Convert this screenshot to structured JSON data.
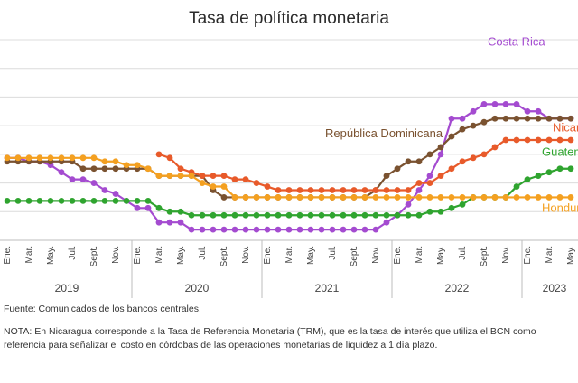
{
  "chart_data": {
    "type": "line",
    "title": "Tasa de política monetaria",
    "xlabel": "",
    "ylabel": "",
    "ylim": [
      0,
      14
    ],
    "grid": true,
    "months": [
      "Ene.",
      "Mar.",
      "May.",
      "Jul.",
      "Sept.",
      "Nov."
    ],
    "years": [
      "2019",
      "2020",
      "2021",
      "2022",
      "2023"
    ],
    "x_start": "2019-01",
    "x_end": "2023-05",
    "tick_months": [
      "2019-01",
      "2019-03",
      "2019-05",
      "2019-07",
      "2019-09",
      "2019-11",
      "2020-01",
      "2020-03",
      "2020-05",
      "2020-07",
      "2020-09",
      "2020-11",
      "2021-01",
      "2021-03",
      "2021-05",
      "2021-07",
      "2021-09",
      "2021-11",
      "2022-01",
      "2022-03",
      "2022-05",
      "2022-07",
      "2022-09",
      "2022-11",
      "2023-01",
      "2023-03",
      "2023-05"
    ],
    "series": [
      {
        "name": "Costa Rica",
        "color": "#a44bd0",
        "label_month": "2022-09",
        "label_y": 13.6,
        "points": [
          [
            "2019-01",
            5.75
          ],
          [
            "2019-02",
            5.75
          ],
          [
            "2019-03",
            5.5
          ],
          [
            "2019-04",
            5.5
          ],
          [
            "2019-05",
            5.25
          ],
          [
            "2019-06",
            4.75
          ],
          [
            "2019-07",
            4.25
          ],
          [
            "2019-08",
            4.25
          ],
          [
            "2019-09",
            4.0
          ],
          [
            "2019-10",
            3.5
          ],
          [
            "2019-11",
            3.25
          ],
          [
            "2019-12",
            2.75
          ],
          [
            "2020-01",
            2.25
          ],
          [
            "2020-02",
            2.25
          ],
          [
            "2020-03",
            1.25
          ],
          [
            "2020-04",
            1.25
          ],
          [
            "2020-05",
            1.25
          ],
          [
            "2020-06",
            0.75
          ],
          [
            "2020-07",
            0.75
          ],
          [
            "2020-08",
            0.75
          ],
          [
            "2020-09",
            0.75
          ],
          [
            "2020-10",
            0.75
          ],
          [
            "2020-11",
            0.75
          ],
          [
            "2020-12",
            0.75
          ],
          [
            "2021-01",
            0.75
          ],
          [
            "2021-02",
            0.75
          ],
          [
            "2021-03",
            0.75
          ],
          [
            "2021-04",
            0.75
          ],
          [
            "2021-05",
            0.75
          ],
          [
            "2021-06",
            0.75
          ],
          [
            "2021-07",
            0.75
          ],
          [
            "2021-08",
            0.75
          ],
          [
            "2021-09",
            0.75
          ],
          [
            "2021-10",
            0.75
          ],
          [
            "2021-11",
            0.75
          ],
          [
            "2021-12",
            1.25
          ],
          [
            "2022-01",
            1.75
          ],
          [
            "2022-02",
            2.5
          ],
          [
            "2022-03",
            3.5
          ],
          [
            "2022-04",
            4.5
          ],
          [
            "2022-05",
            6.0
          ],
          [
            "2022-06",
            8.5
          ],
          [
            "2022-07",
            8.5
          ],
          [
            "2022-08",
            9.0
          ],
          [
            "2022-09",
            9.5
          ],
          [
            "2022-10",
            9.5
          ],
          [
            "2022-11",
            9.5
          ],
          [
            "2022-12",
            9.5
          ],
          [
            "2023-01",
            9.0
          ],
          [
            "2023-02",
            9.0
          ],
          [
            "2023-03",
            8.5
          ],
          [
            "2023-04",
            8.5
          ],
          [
            "2023-05",
            8.5
          ]
        ]
      },
      {
        "name": "República Dominicana",
        "color": "#7a5230",
        "label_month": "2021-06",
        "label_y": 7.2,
        "points": [
          [
            "2019-01",
            5.5
          ],
          [
            "2019-02",
            5.5
          ],
          [
            "2019-03",
            5.5
          ],
          [
            "2019-04",
            5.5
          ],
          [
            "2019-05",
            5.5
          ],
          [
            "2019-06",
            5.5
          ],
          [
            "2019-07",
            5.5
          ],
          [
            "2019-08",
            5.0
          ],
          [
            "2019-09",
            5.0
          ],
          [
            "2019-10",
            5.0
          ],
          [
            "2019-11",
            5.0
          ],
          [
            "2019-12",
            5.0
          ],
          [
            "2020-01",
            5.0
          ],
          [
            "2020-02",
            5.0
          ],
          [
            "2020-03",
            4.5
          ],
          [
            "2020-04",
            4.5
          ],
          [
            "2020-05",
            4.5
          ],
          [
            "2020-06",
            4.5
          ],
          [
            "2020-07",
            4.5
          ],
          [
            "2020-08",
            3.5
          ],
          [
            "2020-09",
            3.0
          ],
          [
            "2020-10",
            3.0
          ],
          [
            "2020-11",
            3.0
          ],
          [
            "2020-12",
            3.0
          ],
          [
            "2021-01",
            3.0
          ],
          [
            "2021-02",
            3.0
          ],
          [
            "2021-03",
            3.0
          ],
          [
            "2021-04",
            3.0
          ],
          [
            "2021-05",
            3.0
          ],
          [
            "2021-06",
            3.0
          ],
          [
            "2021-07",
            3.0
          ],
          [
            "2021-08",
            3.0
          ],
          [
            "2021-09",
            3.0
          ],
          [
            "2021-10",
            3.0
          ],
          [
            "2021-11",
            3.5
          ],
          [
            "2021-12",
            4.5
          ],
          [
            "2022-01",
            5.0
          ],
          [
            "2022-02",
            5.5
          ],
          [
            "2022-03",
            5.5
          ],
          [
            "2022-04",
            6.0
          ],
          [
            "2022-05",
            6.5
          ],
          [
            "2022-06",
            7.25
          ],
          [
            "2022-07",
            7.75
          ],
          [
            "2022-08",
            8.0
          ],
          [
            "2022-09",
            8.25
          ],
          [
            "2022-10",
            8.5
          ],
          [
            "2022-11",
            8.5
          ],
          [
            "2022-12",
            8.5
          ],
          [
            "2023-01",
            8.5
          ],
          [
            "2023-02",
            8.5
          ],
          [
            "2023-03",
            8.5
          ],
          [
            "2023-04",
            8.5
          ],
          [
            "2023-05",
            8.5
          ]
        ]
      },
      {
        "name": "Nicaragua",
        "color": "#e85a2a",
        "label_month": "2023-03",
        "label_y": 7.6,
        "points": [
          [
            "2020-03",
            6.0
          ],
          [
            "2020-04",
            5.75
          ],
          [
            "2020-05",
            5.0
          ],
          [
            "2020-06",
            4.75
          ],
          [
            "2020-07",
            4.5
          ],
          [
            "2020-08",
            4.5
          ],
          [
            "2020-09",
            4.5
          ],
          [
            "2020-10",
            4.25
          ],
          [
            "2020-11",
            4.25
          ],
          [
            "2020-12",
            4.0
          ],
          [
            "2021-01",
            3.75
          ],
          [
            "2021-02",
            3.5
          ],
          [
            "2021-03",
            3.5
          ],
          [
            "2021-04",
            3.5
          ],
          [
            "2021-05",
            3.5
          ],
          [
            "2021-06",
            3.5
          ],
          [
            "2021-07",
            3.5
          ],
          [
            "2021-08",
            3.5
          ],
          [
            "2021-09",
            3.5
          ],
          [
            "2021-10",
            3.5
          ],
          [
            "2021-11",
            3.5
          ],
          [
            "2021-12",
            3.5
          ],
          [
            "2022-01",
            3.5
          ],
          [
            "2022-02",
            3.5
          ],
          [
            "2022-03",
            4.0
          ],
          [
            "2022-04",
            4.0
          ],
          [
            "2022-05",
            4.5
          ],
          [
            "2022-06",
            5.0
          ],
          [
            "2022-07",
            5.5
          ],
          [
            "2022-08",
            5.75
          ],
          [
            "2022-09",
            6.0
          ],
          [
            "2022-10",
            6.5
          ],
          [
            "2022-11",
            7.0
          ],
          [
            "2022-12",
            7.0
          ],
          [
            "2023-01",
            7.0
          ],
          [
            "2023-02",
            7.0
          ],
          [
            "2023-03",
            7.0
          ],
          [
            "2023-04",
            7.0
          ],
          [
            "2023-05",
            7.0
          ]
        ]
      },
      {
        "name": "Guatemala",
        "color": "#2fa42f",
        "label_month": "2023-02",
        "label_y": 5.9,
        "points": [
          [
            "2019-01",
            2.75
          ],
          [
            "2019-02",
            2.75
          ],
          [
            "2019-03",
            2.75
          ],
          [
            "2019-04",
            2.75
          ],
          [
            "2019-05",
            2.75
          ],
          [
            "2019-06",
            2.75
          ],
          [
            "2019-07",
            2.75
          ],
          [
            "2019-08",
            2.75
          ],
          [
            "2019-09",
            2.75
          ],
          [
            "2019-10",
            2.75
          ],
          [
            "2019-11",
            2.75
          ],
          [
            "2019-12",
            2.75
          ],
          [
            "2020-01",
            2.75
          ],
          [
            "2020-02",
            2.75
          ],
          [
            "2020-03",
            2.25
          ],
          [
            "2020-04",
            2.0
          ],
          [
            "2020-05",
            2.0
          ],
          [
            "2020-06",
            1.75
          ],
          [
            "2020-07",
            1.75
          ],
          [
            "2020-08",
            1.75
          ],
          [
            "2020-09",
            1.75
          ],
          [
            "2020-10",
            1.75
          ],
          [
            "2020-11",
            1.75
          ],
          [
            "2020-12",
            1.75
          ],
          [
            "2021-01",
            1.75
          ],
          [
            "2021-02",
            1.75
          ],
          [
            "2021-03",
            1.75
          ],
          [
            "2021-04",
            1.75
          ],
          [
            "2021-05",
            1.75
          ],
          [
            "2021-06",
            1.75
          ],
          [
            "2021-07",
            1.75
          ],
          [
            "2021-08",
            1.75
          ],
          [
            "2021-09",
            1.75
          ],
          [
            "2021-10",
            1.75
          ],
          [
            "2021-11",
            1.75
          ],
          [
            "2021-12",
            1.75
          ],
          [
            "2022-01",
            1.75
          ],
          [
            "2022-02",
            1.75
          ],
          [
            "2022-03",
            1.75
          ],
          [
            "2022-04",
            2.0
          ],
          [
            "2022-05",
            2.0
          ],
          [
            "2022-06",
            2.25
          ],
          [
            "2022-07",
            2.5
          ],
          [
            "2022-08",
            3.0
          ],
          [
            "2022-09",
            3.0
          ],
          [
            "2022-10",
            3.0
          ],
          [
            "2022-11",
            3.0
          ],
          [
            "2022-12",
            3.75
          ],
          [
            "2023-01",
            4.25
          ],
          [
            "2023-02",
            4.5
          ],
          [
            "2023-03",
            4.75
          ],
          [
            "2023-04",
            5.0
          ],
          [
            "2023-05",
            5.0
          ]
        ]
      },
      {
        "name": "Honduras",
        "color": "#f4a020",
        "label_month": "2023-02",
        "label_y": 2.0,
        "points": [
          [
            "2019-01",
            5.75
          ],
          [
            "2019-02",
            5.75
          ],
          [
            "2019-03",
            5.75
          ],
          [
            "2019-04",
            5.75
          ],
          [
            "2019-05",
            5.75
          ],
          [
            "2019-06",
            5.75
          ],
          [
            "2019-07",
            5.75
          ],
          [
            "2019-08",
            5.75
          ],
          [
            "2019-09",
            5.75
          ],
          [
            "2019-10",
            5.5
          ],
          [
            "2019-11",
            5.5
          ],
          [
            "2019-12",
            5.25
          ],
          [
            "2020-01",
            5.25
          ],
          [
            "2020-02",
            5.0
          ],
          [
            "2020-03",
            4.5
          ],
          [
            "2020-04",
            4.5
          ],
          [
            "2020-05",
            4.5
          ],
          [
            "2020-06",
            4.5
          ],
          [
            "2020-07",
            4.0
          ],
          [
            "2020-08",
            3.75
          ],
          [
            "2020-09",
            3.75
          ],
          [
            "2020-10",
            3.0
          ],
          [
            "2020-11",
            3.0
          ],
          [
            "2020-12",
            3.0
          ],
          [
            "2021-01",
            3.0
          ],
          [
            "2021-02",
            3.0
          ],
          [
            "2021-03",
            3.0
          ],
          [
            "2021-04",
            3.0
          ],
          [
            "2021-05",
            3.0
          ],
          [
            "2021-06",
            3.0
          ],
          [
            "2021-07",
            3.0
          ],
          [
            "2021-08",
            3.0
          ],
          [
            "2021-09",
            3.0
          ],
          [
            "2021-10",
            3.0
          ],
          [
            "2021-11",
            3.0
          ],
          [
            "2021-12",
            3.0
          ],
          [
            "2022-01",
            3.0
          ],
          [
            "2022-02",
            3.0
          ],
          [
            "2022-03",
            3.0
          ],
          [
            "2022-04",
            3.0
          ],
          [
            "2022-05",
            3.0
          ],
          [
            "2022-06",
            3.0
          ],
          [
            "2022-07",
            3.0
          ],
          [
            "2022-08",
            3.0
          ],
          [
            "2022-09",
            3.0
          ],
          [
            "2022-10",
            3.0
          ],
          [
            "2022-11",
            3.0
          ],
          [
            "2022-12",
            3.0
          ],
          [
            "2023-01",
            3.0
          ],
          [
            "2023-02",
            3.0
          ],
          [
            "2023-03",
            3.0
          ],
          [
            "2023-04",
            3.0
          ],
          [
            "2023-05",
            3.0
          ]
        ]
      }
    ]
  },
  "notes": {
    "source": "Fuente: Comunicados de los bancos centrales.",
    "nota": "NOTA: En Nicaragua corresponde a la Tasa de Referencia Monetaria (TRM), que es la tasa de interés que utiliza el BCN como referencia para señalizar el costo en córdobas de las operaciones monetarias de liquidez a 1 día plazo."
  }
}
